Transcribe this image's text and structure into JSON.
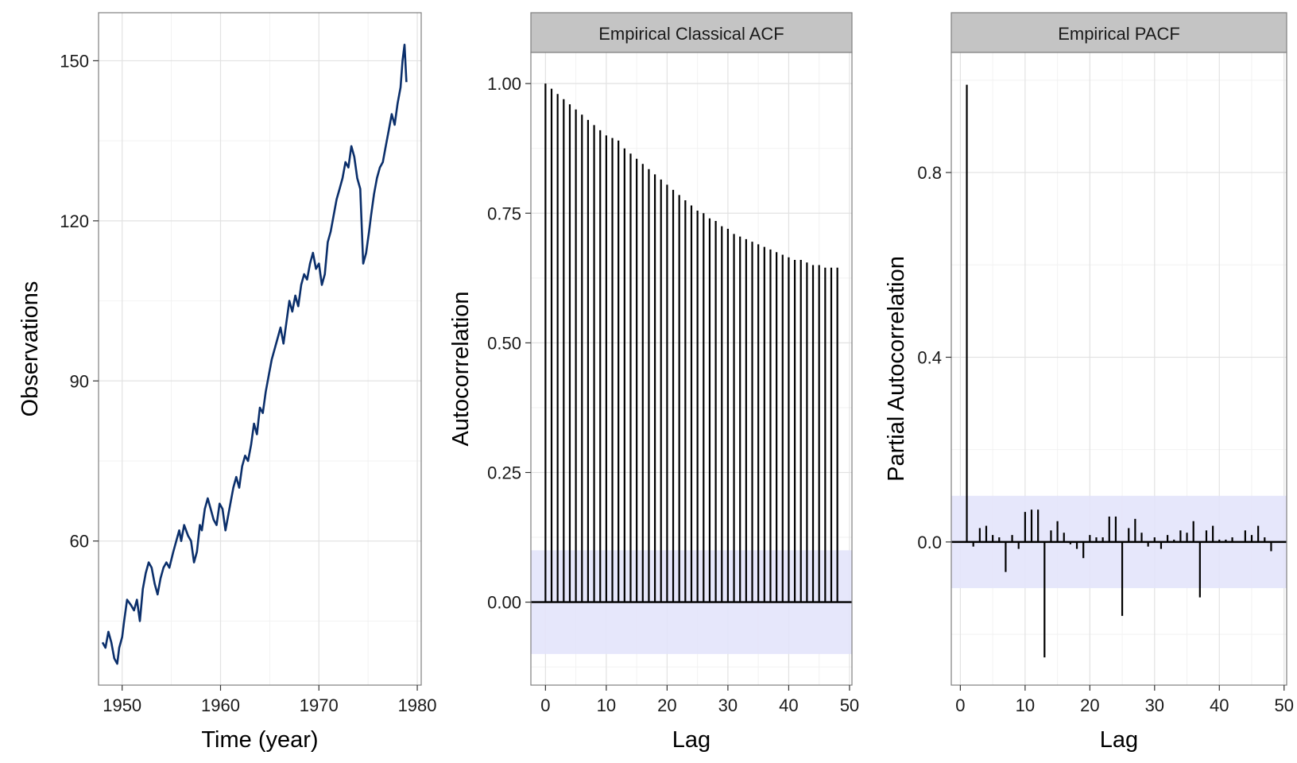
{
  "chart_data": [
    {
      "type": "line",
      "title": "",
      "xlabel": "Time (year)",
      "ylabel": "Observations",
      "xlim": [
        1947.6,
        1980.4
      ],
      "ylim": [
        33,
        159
      ],
      "xticks": [
        1950,
        1960,
        1970,
        1980
      ],
      "xtick_labels": [
        "1950",
        "1960",
        "1970",
        "1980"
      ],
      "yticks": [
        60,
        90,
        120,
        150
      ],
      "ytick_labels": [
        "60",
        "90",
        "120",
        "150"
      ],
      "grid": true,
      "line_color": "#0b2f6b",
      "series": [
        {
          "x": [
            1948.0,
            1948.3,
            1948.6,
            1948.9,
            1949.2,
            1949.5,
            1949.7,
            1950.0,
            1950.2,
            1950.5,
            1950.9,
            1951.2,
            1951.5,
            1951.8,
            1952.1,
            1952.4,
            1952.7,
            1953.0,
            1953.3,
            1953.6,
            1953.9,
            1954.2,
            1954.5,
            1954.8,
            1955.2,
            1955.5,
            1955.8,
            1956.0,
            1956.3,
            1956.7,
            1957.0,
            1957.3,
            1957.6,
            1957.9,
            1958.1,
            1958.4,
            1958.7,
            1959.0,
            1959.3,
            1959.6,
            1959.9,
            1960.2,
            1960.5,
            1960.8,
            1961.1,
            1961.3,
            1961.6,
            1961.9,
            1962.2,
            1962.5,
            1962.8,
            1963.1,
            1963.4,
            1963.7,
            1964.0,
            1964.3,
            1964.6,
            1964.9,
            1965.2,
            1965.5,
            1965.8,
            1966.1,
            1966.4,
            1966.7,
            1967.0,
            1967.3,
            1967.6,
            1967.9,
            1968.2,
            1968.5,
            1968.8,
            1969.1,
            1969.4,
            1969.7,
            1970.0,
            1970.3,
            1970.6,
            1970.9,
            1971.2,
            1971.5,
            1971.8,
            1972.1,
            1972.4,
            1972.7,
            1973.0,
            1973.3,
            1973.6,
            1973.9,
            1974.2,
            1974.5,
            1974.8,
            1975.1,
            1975.3,
            1975.6,
            1975.9,
            1976.2,
            1976.5,
            1976.8,
            1977.1,
            1977.4,
            1977.7,
            1978.0,
            1978.3,
            1978.5,
            1978.7,
            1978.9
          ],
          "y": [
            41,
            40,
            43,
            41,
            38,
            37,
            40,
            42,
            45,
            49,
            48,
            47,
            49,
            45,
            51,
            54,
            56,
            55,
            52,
            50,
            53,
            55,
            56,
            55,
            58,
            60,
            62,
            60,
            63,
            61,
            60,
            56,
            58,
            63,
            62,
            66,
            68,
            66,
            64,
            63,
            67,
            66,
            62,
            65,
            68,
            70,
            72,
            70,
            74,
            76,
            75,
            78,
            82,
            80,
            85,
            84,
            88,
            91,
            94,
            96,
            98,
            100,
            97,
            101,
            105,
            103,
            106,
            104,
            108,
            110,
            109,
            112,
            114,
            111,
            112,
            108,
            110,
            116,
            118,
            121,
            124,
            126,
            128,
            131,
            130,
            134,
            132,
            128,
            126,
            112,
            114,
            118,
            121,
            125,
            128,
            130,
            131,
            134,
            137,
            140,
            138,
            142,
            145,
            150,
            153,
            146
          ]
        }
      ]
    },
    {
      "type": "bar",
      "title": "Empirical Classical ACF",
      "xlabel": "Lag",
      "ylabel": "Autocorrelation",
      "xlim": [
        -2.4,
        50.4
      ],
      "ylim": [
        -0.16,
        1.06
      ],
      "xticks": [
        0,
        10,
        20,
        30,
        40,
        50
      ],
      "xtick_labels": [
        "0",
        "10",
        "20",
        "30",
        "40",
        "50"
      ],
      "yticks": [
        0,
        0.25,
        0.5,
        0.75,
        1.0
      ],
      "ytick_labels": [
        "0.00",
        "0.25",
        "0.50",
        "0.75",
        "1.00"
      ],
      "confidence_band": [
        -0.1,
        0.1
      ],
      "band_color": "#e3e4fb",
      "grid": true,
      "series": [
        {
          "x": [
            0,
            1,
            2,
            3,
            4,
            5,
            6,
            7,
            8,
            9,
            10,
            11,
            12,
            13,
            14,
            15,
            16,
            17,
            18,
            19,
            20,
            21,
            22,
            23,
            24,
            25,
            26,
            27,
            28,
            29,
            30,
            31,
            32,
            33,
            34,
            35,
            36,
            37,
            38,
            39,
            40,
            41,
            42,
            43,
            44,
            45,
            46,
            47,
            48
          ],
          "values": [
            1.0,
            0.99,
            0.98,
            0.97,
            0.96,
            0.95,
            0.94,
            0.93,
            0.92,
            0.91,
            0.9,
            0.895,
            0.89,
            0.875,
            0.865,
            0.855,
            0.845,
            0.835,
            0.825,
            0.815,
            0.805,
            0.795,
            0.785,
            0.775,
            0.765,
            0.755,
            0.75,
            0.74,
            0.735,
            0.725,
            0.72,
            0.71,
            0.705,
            0.7,
            0.695,
            0.69,
            0.685,
            0.68,
            0.675,
            0.67,
            0.665,
            0.66,
            0.66,
            0.655,
            0.65,
            0.65,
            0.645,
            0.645,
            0.645
          ]
        }
      ]
    },
    {
      "type": "bar",
      "title": "Empirical PACF",
      "xlabel": "Lag",
      "ylabel": "Partial Autocorrelation",
      "xlim": [
        -1.4,
        50.4
      ],
      "ylim": [
        -0.31,
        1.06
      ],
      "xticks": [
        0,
        10,
        20,
        30,
        40,
        50
      ],
      "xtick_labels": [
        "0",
        "10",
        "20",
        "30",
        "40",
        "50"
      ],
      "yticks": [
        0,
        0.4,
        0.8
      ],
      "ytick_labels": [
        "0.0",
        "0.4",
        "0.8"
      ],
      "confidence_band": [
        -0.1,
        0.1
      ],
      "band_color": "#e3e4fb",
      "grid": true,
      "series": [
        {
          "x": [
            1,
            2,
            3,
            4,
            5,
            6,
            7,
            8,
            9,
            10,
            11,
            12,
            13,
            14,
            15,
            16,
            17,
            18,
            19,
            20,
            21,
            22,
            23,
            24,
            25,
            26,
            27,
            28,
            29,
            30,
            31,
            32,
            33,
            34,
            35,
            36,
            37,
            38,
            39,
            40,
            41,
            42,
            43,
            44,
            45,
            46,
            47,
            48
          ],
          "values": [
            0.99,
            -0.01,
            0.03,
            0.035,
            0.015,
            0.01,
            -0.065,
            0.015,
            -0.015,
            0.065,
            0.07,
            0.07,
            -0.25,
            0.025,
            0.045,
            0.02,
            -0.005,
            -0.015,
            -0.035,
            0.015,
            0.01,
            0.01,
            0.055,
            0.055,
            -0.16,
            0.03,
            0.05,
            0.02,
            -0.01,
            0.01,
            -0.015,
            0.015,
            0.005,
            0.025,
            0.02,
            0.045,
            -0.12,
            0.025,
            0.035,
            0.005,
            0.005,
            0.01,
            0.0,
            0.025,
            0.015,
            0.035,
            0.01,
            -0.02
          ]
        }
      ]
    }
  ]
}
